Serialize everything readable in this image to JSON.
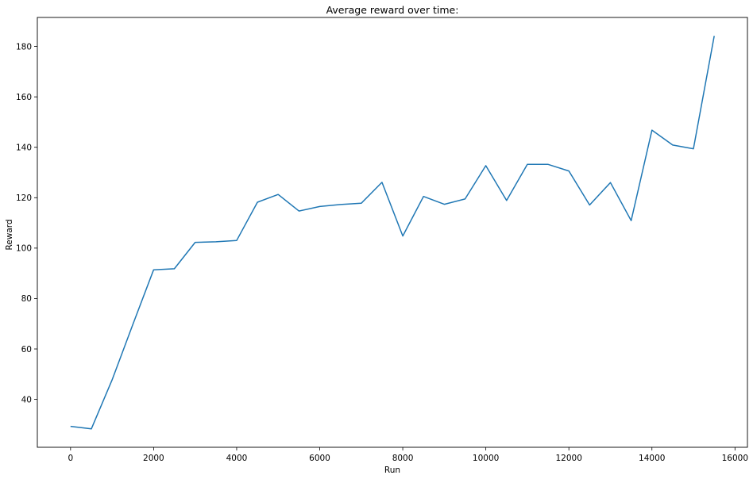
{
  "chart_data": {
    "type": "line",
    "title": "Average reward over time:",
    "xlabel": "Run",
    "ylabel": "Reward",
    "xlim": [
      -800,
      16300
    ],
    "ylim": [
      21,
      191.5
    ],
    "xticks": [
      0,
      2000,
      4000,
      6000,
      8000,
      10000,
      12000,
      14000,
      16000
    ],
    "yticks": [
      40,
      60,
      80,
      100,
      120,
      140,
      160,
      180
    ],
    "grid": false,
    "line_color": "#1f77b4",
    "series": [
      {
        "x": [
          0,
          500,
          1000,
          1500,
          2000,
          2500,
          3000,
          3500,
          4000,
          4500,
          5000,
          5500,
          6000,
          6500,
          7000,
          7500,
          8000,
          8500,
          9000,
          9500,
          10000,
          10500,
          11000,
          11500,
          12000,
          12500,
          13000,
          13500,
          14000,
          14500,
          15000,
          15500
        ],
        "y": [
          29.3,
          28.3,
          47.7,
          69.7,
          91.4,
          91.8,
          102.3,
          102.5,
          103.0,
          118.2,
          121.3,
          114.7,
          116.5,
          117.3,
          117.8,
          126.1,
          104.8,
          120.5,
          117.4,
          119.5,
          132.7,
          118.9,
          133.2,
          133.2,
          130.6,
          117.1,
          126.0,
          110.9,
          146.8,
          140.9,
          139.4,
          184.2
        ]
      }
    ]
  }
}
